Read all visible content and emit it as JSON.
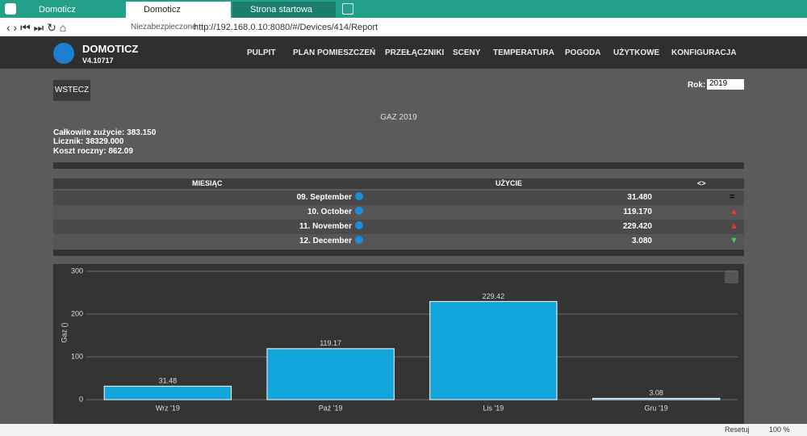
{
  "browser": {
    "tabs": [
      "Domoticz",
      "Domoticz",
      "Strona startowa"
    ],
    "security": "Niezabezpieczone",
    "url": "http://192.168.0.10:8080/#/Devices/414/Report",
    "status": {
      "reset": "Resetuj",
      "zoom": "100 %"
    }
  },
  "header": {
    "brand": "DOMOTICZ",
    "version": "V4.10717",
    "nav": [
      "PULPIT",
      "PLAN POMIESZCZEŃ",
      "PRZEŁĄCZNIKI",
      "SCENY",
      "TEMPERATURA",
      "POGODA",
      "UŻYTKOWE",
      "KONFIGURACJA"
    ]
  },
  "report": {
    "back": "WSTECZ",
    "year_label": "Rok:",
    "year": "2019",
    "title": "GAZ 2019",
    "stats": [
      "Całkowite zużycie: 383.150",
      "Licznik: 38329.000",
      "Koszt roczny: 862.09"
    ],
    "table": {
      "headers": [
        "MIESIĄC",
        "UŻYCIE",
        "<>"
      ],
      "rows": [
        [
          "09. September",
          "31.480"
        ],
        [
          "10. October",
          "119.170"
        ],
        [
          "11. November",
          "229.420"
        ],
        [
          "12. December",
          "3.080"
        ]
      ]
    }
  },
  "chart_data": {
    "type": "bar",
    "y_label": "Gaz ()",
    "categories": [
      "Wrz '19",
      "Paź '19",
      "Lis '19",
      "Gru '19"
    ],
    "values": [
      31.48,
      119.17,
      229.42,
      3.08
    ],
    "color": "#12a6dc",
    "ylim": [
      0,
      300
    ],
    "yticks": [
      0,
      100,
      200,
      300
    ],
    "grid": true,
    "data_labels": true
  }
}
